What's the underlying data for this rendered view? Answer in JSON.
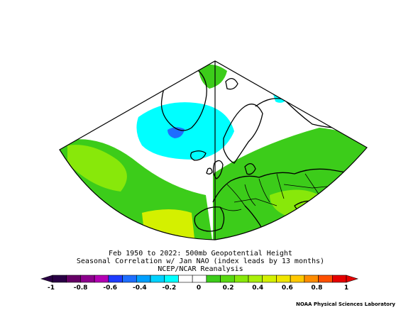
{
  "titles": {
    "line1": "Feb 1950 to 2022: 500mb Geopotential Height",
    "line2": "Seasonal Correlation w/ Jan NAO (index leads by 13 months)",
    "line3": "NCEP/NCAR Reanalysis"
  },
  "credit": "NOAA Physical Sciences Laboratory",
  "colorbar": {
    "ticks": [
      "-1",
      "-0.8",
      "-0.6",
      "-0.4",
      "-0.2",
      "0",
      "0.2",
      "0.4",
      "0.6",
      "0.8",
      "1"
    ],
    "colors": [
      "#2a0045",
      "#660066",
      "#8c008c",
      "#b400b4",
      "#1e3cff",
      "#1e6eff",
      "#00a0ff",
      "#00d2ff",
      "#00ffff",
      "#ffffff",
      "#ffffff",
      "#3ccc1a",
      "#59d911",
      "#88e80a",
      "#aaf00a",
      "#d4f000",
      "#f0e600",
      "#ffc800",
      "#ff8c00",
      "#ff5000",
      "#e60000"
    ]
  },
  "map": {
    "colors": {
      "blue_light": "#00ffff",
      "blue_mid": "#1e6eff",
      "green": "#3ccc1a",
      "green_light": "#88e80a",
      "yellow_green": "#d4f000",
      "land_outline": "#000000"
    }
  }
}
